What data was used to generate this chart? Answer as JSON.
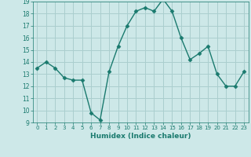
{
  "x": [
    0,
    1,
    2,
    3,
    4,
    5,
    6,
    7,
    8,
    9,
    10,
    11,
    12,
    13,
    14,
    15,
    16,
    17,
    18,
    19,
    20,
    21,
    22,
    23
  ],
  "y": [
    13.5,
    14.0,
    13.5,
    12.7,
    12.5,
    12.5,
    9.8,
    9.2,
    13.2,
    15.3,
    17.0,
    18.2,
    18.5,
    18.2,
    19.2,
    18.2,
    16.0,
    14.2,
    14.7,
    15.3,
    13.0,
    12.0,
    12.0,
    13.2
  ],
  "xlabel": "Humidex (Indice chaleur)",
  "ylim": [
    9,
    19
  ],
  "xlim": [
    -0.5,
    23.5
  ],
  "yticks": [
    9,
    10,
    11,
    12,
    13,
    14,
    15,
    16,
    17,
    18,
    19
  ],
  "xticks": [
    0,
    1,
    2,
    3,
    4,
    5,
    6,
    7,
    8,
    9,
    10,
    11,
    12,
    13,
    14,
    15,
    16,
    17,
    18,
    19,
    20,
    21,
    22,
    23
  ],
  "line_color": "#1a7a6e",
  "bg_color": "#cde8e8",
  "grid_color": "#aacece"
}
